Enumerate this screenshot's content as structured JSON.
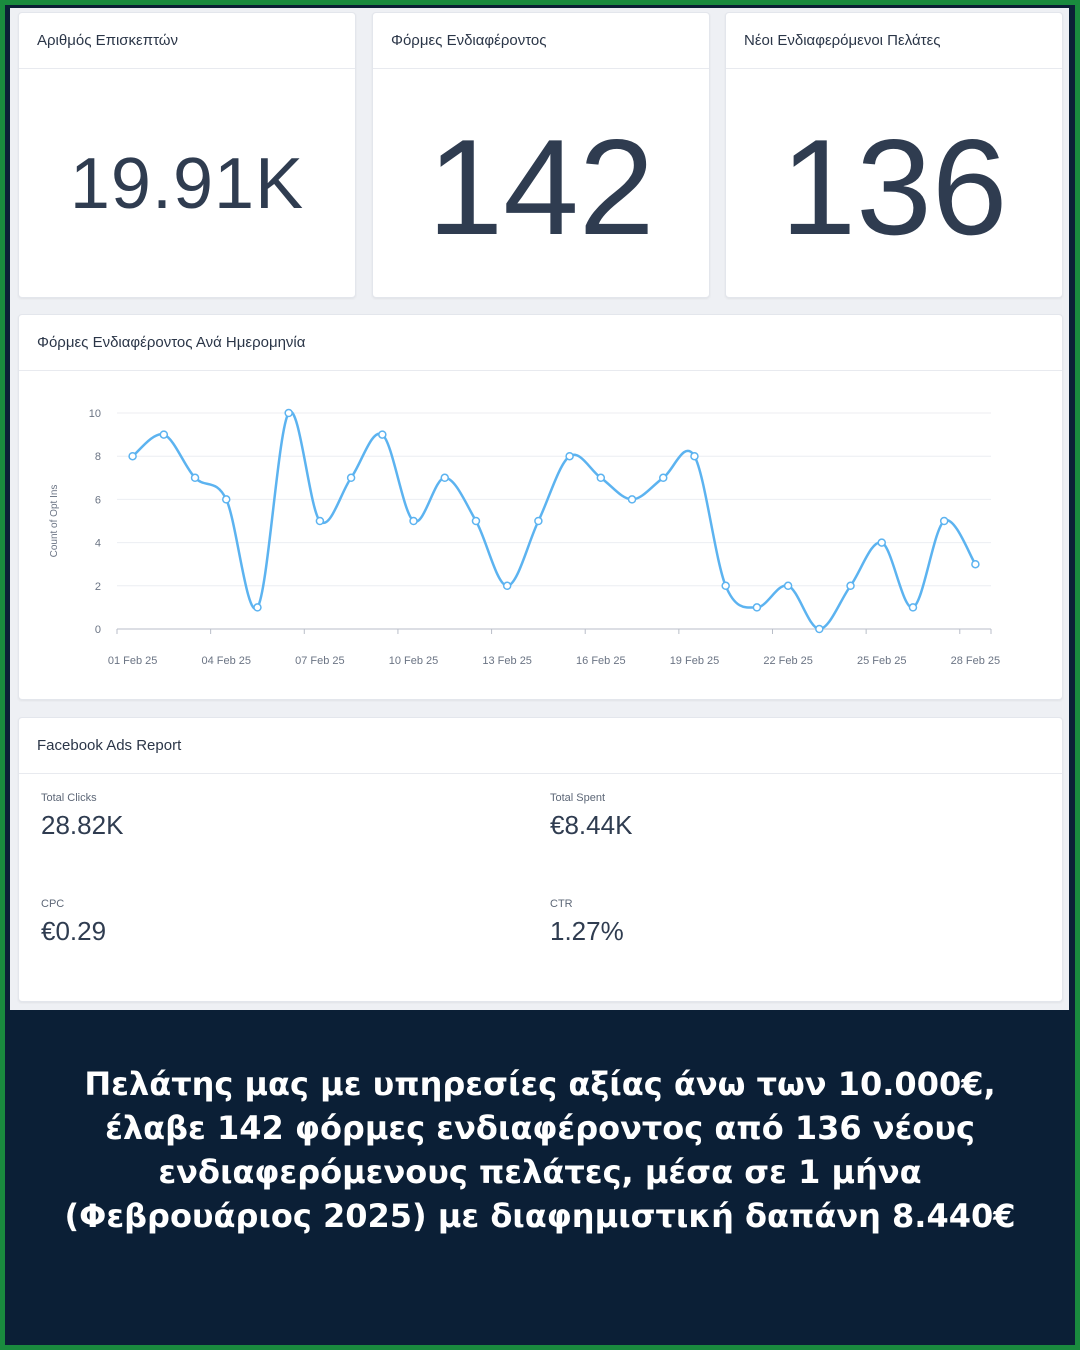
{
  "kpis": {
    "visitors": {
      "title": "Αριθμός Επισκεπτών",
      "value": "19.91K"
    },
    "forms": {
      "title": "Φόρμες Ενδιαφέροντος",
      "value": "142"
    },
    "new_clients": {
      "title": "Νέοι Ενδιαφερόμενοι Πελάτες",
      "value": "136"
    }
  },
  "chart_card": {
    "title": "Φόρμες Ενδιαφέροντος Ανά Ημερομηνία"
  },
  "chart_data": {
    "type": "line",
    "title": "Φόρμες Ενδιαφέροντος Ανά Ημερομηνία",
    "xlabel": "",
    "ylabel": "Count of Opt Ins",
    "ylim": [
      0,
      10
    ],
    "yticks": [
      0,
      2,
      4,
      6,
      8,
      10
    ],
    "grid": true,
    "line_color": "#5cb3f0",
    "x": [
      "01 Feb 25",
      "02 Feb 25",
      "03 Feb 25",
      "04 Feb 25",
      "05 Feb 25",
      "06 Feb 25",
      "07 Feb 25",
      "08 Feb 25",
      "09 Feb 25",
      "10 Feb 25",
      "11 Feb 25",
      "12 Feb 25",
      "13 Feb 25",
      "14 Feb 25",
      "15 Feb 25",
      "16 Feb 25",
      "17 Feb 25",
      "18 Feb 25",
      "19 Feb 25",
      "20 Feb 25",
      "21 Feb 25",
      "22 Feb 25",
      "23 Feb 25",
      "24 Feb 25",
      "25 Feb 25",
      "26 Feb 25",
      "27 Feb 25",
      "28 Feb 25"
    ],
    "xtick_labels": [
      "01 Feb 25",
      "04 Feb 25",
      "07 Feb 25",
      "10 Feb 25",
      "13 Feb 25",
      "16 Feb 25",
      "19 Feb 25",
      "22 Feb 25",
      "25 Feb 25",
      "28 Feb 25"
    ],
    "values": [
      8,
      9,
      7,
      6,
      1,
      10,
      5,
      7,
      9,
      5,
      7,
      5,
      2,
      5,
      8,
      7,
      6,
      7,
      8,
      2,
      1,
      2,
      0,
      2,
      4,
      1,
      5,
      3
    ]
  },
  "facebook": {
    "title": "Facebook Ads Report",
    "total_clicks": {
      "label": "Total Clicks",
      "value": "28.82K"
    },
    "total_spent": {
      "label": "Total Spent",
      "value": "€8.44K"
    },
    "cpc": {
      "label": "CPC",
      "value": "€0.29"
    },
    "ctr": {
      "label": "CTR",
      "value": "1.27%"
    }
  },
  "caption": {
    "lines": [
      "Πελάτης μας με υπηρεσίες αξίας άνω των 10.000€,",
      "έλαβε 142 φόρμες ενδιαφέροντος από 136 νέους",
      "ενδιαφερόμενους πελάτες, μέσα σε 1 μήνα",
      "(Φεβρουάριος 2025) με διαφημιστική δαπάνη 8.440€"
    ]
  },
  "colors": {
    "frame": "#1a8a3e",
    "background": "#0b1f36",
    "accent": "#5cb3f0"
  }
}
